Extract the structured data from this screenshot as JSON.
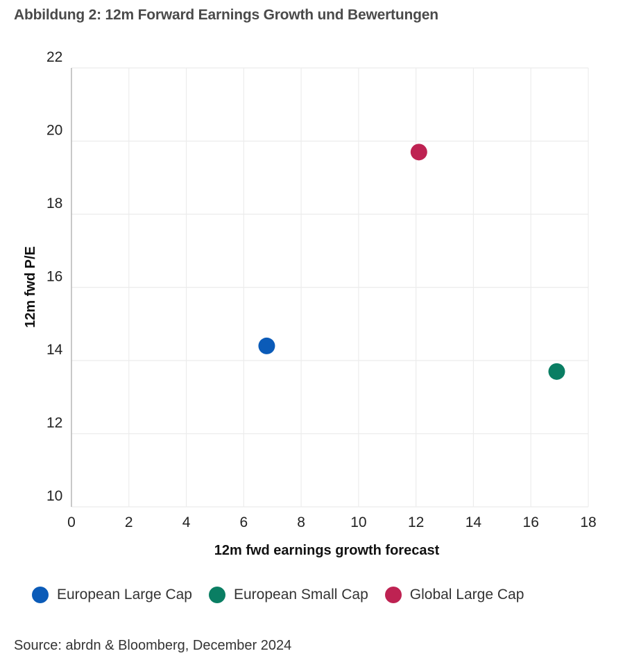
{
  "title": "Abbildung 2: 12m Forward Earnings Growth und Bewertungen",
  "source": "Source:  abrdn & Bloomberg, December 2024",
  "chart_data": {
    "type": "scatter",
    "title": "Abbildung 2: 12m Forward Earnings Growth und Bewertungen",
    "xlabel": "12m fwd earnings growth forecast",
    "ylabel": "12m fwd P/E",
    "xlim": [
      0,
      18
    ],
    "ylim": [
      10,
      22
    ],
    "xticks": [
      0,
      2,
      4,
      6,
      8,
      10,
      12,
      14,
      16,
      18
    ],
    "yticks": [
      10,
      12,
      14,
      16,
      18,
      20,
      22
    ],
    "grid": true,
    "legend_position": "bottom",
    "series": [
      {
        "name": "European Large Cap",
        "color": "#0b5bb8",
        "points": [
          {
            "x": 6.8,
            "y": 14.4
          }
        ]
      },
      {
        "name": "European Small Cap",
        "color": "#0a7e63",
        "points": [
          {
            "x": 16.9,
            "y": 13.7
          }
        ]
      },
      {
        "name": "Global Large Cap",
        "color": "#be2252",
        "points": [
          {
            "x": 12.1,
            "y": 19.7
          }
        ]
      }
    ]
  }
}
